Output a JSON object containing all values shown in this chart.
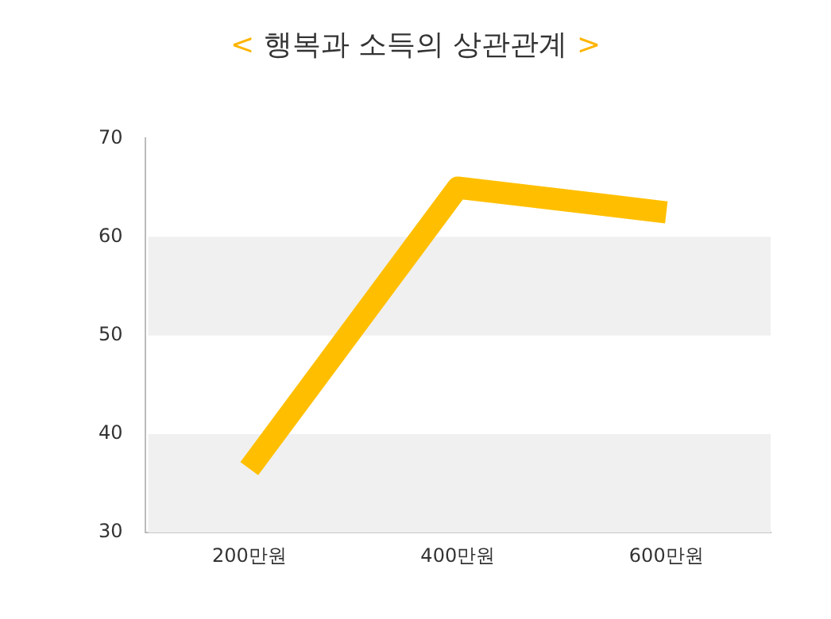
{
  "chart_data": {
    "type": "line",
    "title": "< 행복과 소득의 상관관계 >",
    "categories": [
      "200만원",
      "400만원",
      "600만원"
    ],
    "series": [
      {
        "color": "#ffbf00",
        "values": [
          36.5,
          65,
          62.5
        ]
      }
    ],
    "ylim": [
      30,
      70
    ],
    "yticks": [
      30,
      40,
      50,
      60,
      70
    ],
    "grid": false,
    "legend": false,
    "marker": "none",
    "line_style": "solid",
    "bands": [
      {
        "axis": "y",
        "from": 30,
        "to": 40,
        "color": "#f0f0f0"
      },
      {
        "axis": "y",
        "from": 50,
        "to": 60,
        "color": "#f0f0f0"
      }
    ]
  }
}
